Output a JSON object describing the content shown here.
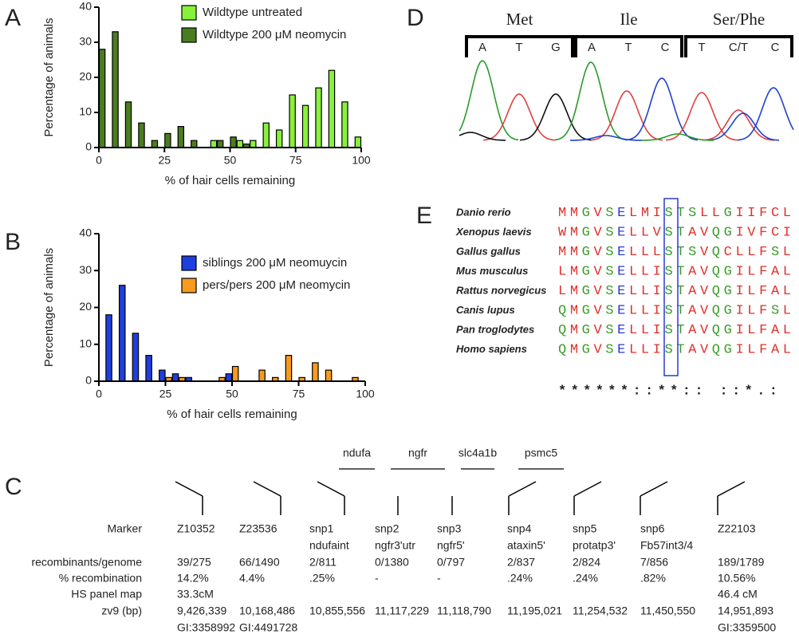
{
  "panels": [
    "A",
    "B",
    "C",
    "D",
    "E"
  ],
  "chart_data": [
    {
      "type": "bar",
      "ylabel": "Percentage of animals",
      "xlabel": "% of hair cells remaining",
      "x": [
        2.5,
        7.5,
        12.5,
        17.5,
        22.5,
        27.5,
        32.5,
        37.5,
        42.5,
        47.5,
        52.5,
        57.5,
        62.5,
        67.5,
        72.5,
        77.5,
        82.5,
        87.5,
        92.5,
        97.5
      ],
      "xlim": [
        0,
        100
      ],
      "xticks": [
        0,
        25,
        50,
        75,
        100
      ],
      "ylim": [
        0,
        40
      ],
      "yticks": [
        0,
        10,
        20,
        30,
        40
      ],
      "series": [
        {
          "name": "Wildtype untreated",
          "color": "#88f23a",
          "values": [
            null,
            null,
            null,
            null,
            null,
            null,
            null,
            null,
            2,
            null,
            2,
            2,
            7,
            5,
            15,
            12,
            17,
            22,
            13,
            3
          ]
        },
        {
          "name": "Wildtype 200 μM neomycin",
          "color": "#4a7d1f",
          "values": [
            28,
            33,
            13,
            7,
            2,
            4,
            6,
            2,
            null,
            2,
            3,
            1,
            null,
            null,
            null,
            null,
            null,
            null,
            null,
            null
          ]
        }
      ]
    },
    {
      "type": "bar",
      "ylabel": "Percentage of animals",
      "xlabel": "% of hair cells remaining",
      "x": [
        2.5,
        7.5,
        12.5,
        17.5,
        22.5,
        27.5,
        32.5,
        37.5,
        42.5,
        47.5,
        52.5,
        57.5,
        62.5,
        67.5,
        72.5,
        77.5,
        82.5,
        87.5,
        92.5,
        97.5
      ],
      "xlim": [
        0,
        100
      ],
      "xticks": [
        0,
        25,
        50,
        75,
        100
      ],
      "ylim": [
        0,
        40
      ],
      "yticks": [
        0,
        10,
        20,
        30,
        40
      ],
      "series": [
        {
          "name": "siblings 200 μM neomuycin",
          "color": "#1e3ee0",
          "values": [
            18,
            26,
            13,
            7,
            3,
            2,
            1,
            null,
            null,
            2,
            null,
            null,
            null,
            null,
            null,
            null,
            null,
            null,
            null,
            null
          ]
        },
        {
          "name": "pers/pers 200 μM neomycin",
          "color": "#f79a1e",
          "values": [
            null,
            null,
            null,
            null,
            null,
            1,
            1,
            null,
            null,
            1,
            4,
            null,
            3,
            1,
            7,
            1,
            5,
            3,
            null,
            1
          ]
        }
      ]
    }
  ],
  "chromatogram": {
    "codons": [
      {
        "aa": "Met",
        "bases": [
          "A",
          "T",
          "G"
        ]
      },
      {
        "aa": "Ile",
        "bases": [
          "A",
          "T",
          "C"
        ]
      },
      {
        "aa": "Ser/Phe",
        "bases": [
          "T",
          "C/T",
          "C"
        ]
      }
    ]
  },
  "alignment": {
    "rows": [
      {
        "species": "Danio rerio",
        "sequence": "MMGVSELMISTSLLGIIFCL"
      },
      {
        "species": "Xenopus laevis",
        "sequence": "WMGVSELLVSTAVQGIVFCI"
      },
      {
        "species": "Gallus gallus",
        "sequence": "MMGVSELLLSTSVQCLLFSL"
      },
      {
        "species": "Mus musculus",
        "sequence": "LMGVSELLISTAVQGILFAL"
      },
      {
        "species": "Rattus norvegicus",
        "sequence": "LMGVSELLISTAVQGILFAL"
      },
      {
        "species": "Canis lupus",
        "sequence": "QMGVSELLISTAVQGILFSL"
      },
      {
        "species": "Pan troglodytes",
        "sequence": "QMGVSELLISTAVQGILFAL"
      },
      {
        "species": "Homo sapiens",
        "sequence": "QMGVSELLISTAVQGILFAL"
      }
    ],
    "conservation": "******::**::  ::*.:",
    "colors": {
      "red": "#e0302a",
      "green": "#3a9a2a",
      "blue": "#2a3ad0"
    },
    "red_residues": "MLIVFWAC",
    "green_residues": "GSTQYNH",
    "blue_residues": "EDKR"
  },
  "map": {
    "genes": [
      "ndufa",
      "ngfr",
      "slc4a1b",
      "psmc5"
    ],
    "row_labels": [
      "Marker",
      "recombinants/genome",
      "% recombination",
      "HS panel map",
      "zv9 (bp)"
    ],
    "markers": [
      {
        "name": "Z10352",
        "recombinants": "39/275",
        "percent": "14.2%",
        "hs": "33.3cM",
        "bp": "9,426,339",
        "gi": "GI:3358992"
      },
      {
        "name": "Z23536",
        "recombinants": "66/1490",
        "percent": "4.4%",
        "bp": "10,168,486",
        "gi": "GI:4491728"
      },
      {
        "name": "snp1",
        "sub": "ndufaint",
        "recombinants": "2/811",
        "percent": ".25%",
        "bp": "10,855,556"
      },
      {
        "name": "snp2",
        "sub": "ngfr3'utr",
        "recombinants": "0/1380",
        "percent": "-",
        "bp": "11,117,229"
      },
      {
        "name": "snp3",
        "sub": "ngfr5'",
        "recombinants": "0/797",
        "percent": "-",
        "bp": "11,118,790"
      },
      {
        "name": "snp4",
        "sub": "ataxin5'",
        "recombinants": "2/837",
        "percent": ".24%",
        "bp": "11,195,021"
      },
      {
        "name": "snp5",
        "sub": "protatp3'",
        "recombinants": "2/824",
        "percent": ".24%",
        "bp": "11,254,532"
      },
      {
        "name": "snp6",
        "sub": "Fb57int3/4",
        "recombinants": "7/856",
        "percent": ".82%",
        "bp": "11,450,550"
      },
      {
        "name": "Z22103",
        "recombinants": "189/1789",
        "percent": "10.56%",
        "hs": "46.4 cM",
        "bp": "14,951,893",
        "gi": "GI:3359500"
      }
    ]
  }
}
